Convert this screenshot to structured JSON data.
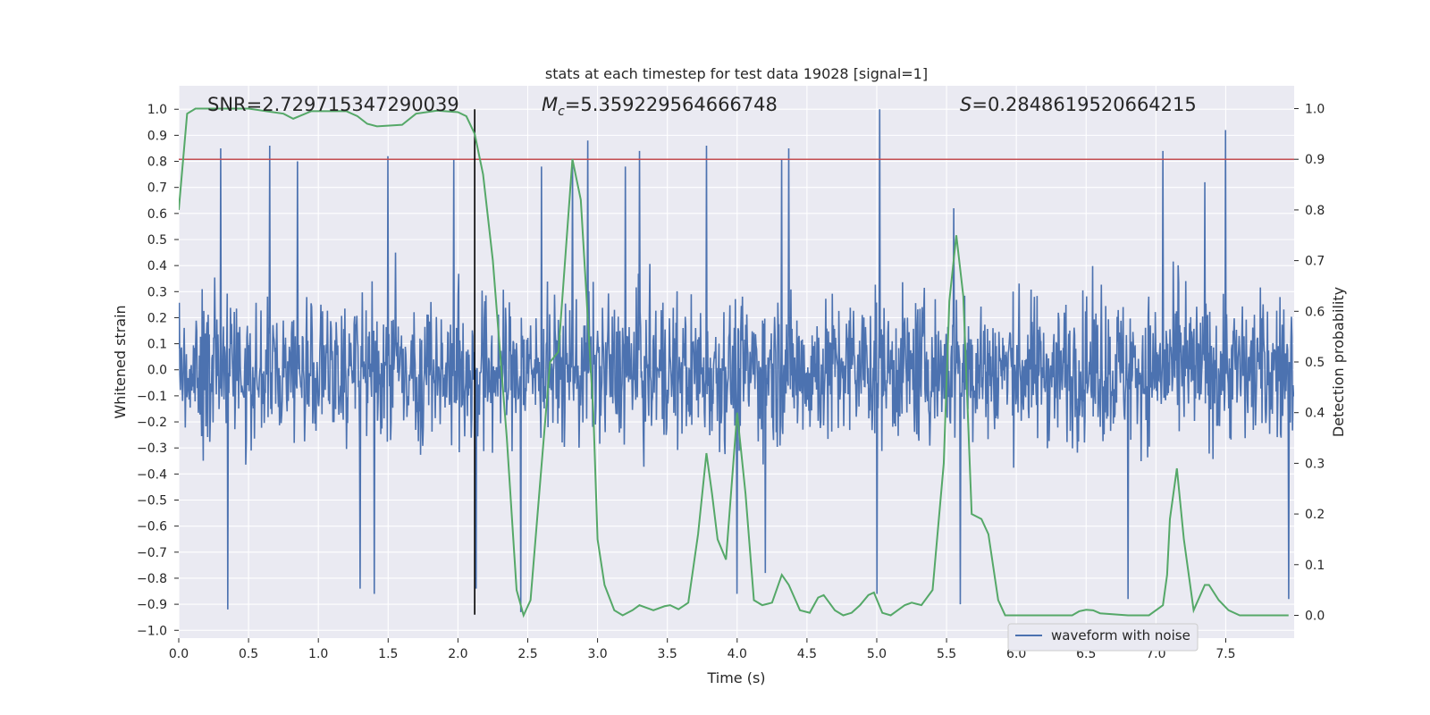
{
  "chart_data": {
    "type": "line",
    "title": "stats at each timestep for test data 19028 [signal=1]",
    "xlabel": "Time (s)",
    "ylabel": "Whitened strain",
    "ylabel_right": "Detection probability",
    "xlim": [
      0.0,
      7.99
    ],
    "ylim": [
      -1.03,
      1.09
    ],
    "ylim_right": [
      -0.045,
      1.045
    ],
    "xticks": [
      0.0,
      0.5,
      1.0,
      1.5,
      2.0,
      2.5,
      3.0,
      3.5,
      4.0,
      4.5,
      5.0,
      5.5,
      6.0,
      6.5,
      7.0,
      7.5
    ],
    "xtick_labels": [
      "0.0",
      "0.5",
      "1.0",
      "1.5",
      "2.0",
      "2.5",
      "3.0",
      "3.5",
      "4.0",
      "4.5",
      "5.0",
      "5.5",
      "6.0",
      "6.5",
      "7.0",
      "7.5"
    ],
    "yticks": [
      1.0,
      0.9,
      0.8,
      0.7,
      0.6,
      0.5,
      0.4,
      0.3,
      0.2,
      0.1,
      0.0,
      -0.1,
      -0.2,
      -0.3,
      -0.4,
      -0.5,
      -0.6,
      -0.7,
      -0.8,
      -0.9,
      -1.0
    ],
    "ytick_labels": [
      "1.0",
      "0.9",
      "0.8",
      "0.7",
      "0.6",
      "0.5",
      "0.4",
      "0.3",
      "0.2",
      "0.1",
      "0.0",
      "−0.1",
      "−0.2",
      "−0.3",
      "−0.4",
      "−0.5",
      "−0.6",
      "−0.7",
      "−0.8",
      "−0.9",
      "−1.0"
    ],
    "yticks_right": [
      1.0,
      0.9,
      0.8,
      0.7,
      0.6,
      0.5,
      0.4,
      0.3,
      0.2,
      0.1,
      0.0
    ],
    "ytick_labels_right": [
      "1.0",
      "0.9",
      "0.8",
      "0.7",
      "0.6",
      "0.5",
      "0.4",
      "0.3",
      "0.2",
      "0.1",
      "0.0"
    ],
    "grid": true,
    "legend": {
      "location": "lower-right",
      "entries": [
        "waveform with noise"
      ]
    },
    "annotations": {
      "snr": "SNR=2.729715347290039",
      "mc_symbol": "M",
      "mc_sub": "c",
      "mc_value": "=5.359229564666748",
      "s_symbol": "S",
      "s_value": "=0.2848619520664215"
    },
    "threshold_right": 0.9,
    "vline_x": 2.12,
    "vline_yrange": [
      -0.94,
      1.0
    ],
    "series": [
      {
        "name": "waveform with noise",
        "axis": "left",
        "style": "noise",
        "color": "#4c72b0",
        "n_samples": 2048,
        "amplitude": 0.45,
        "peaks": [
          [
            0.35,
            -0.92
          ],
          [
            0.3,
            0.85
          ],
          [
            0.65,
            0.86
          ],
          [
            1.5,
            0.82
          ],
          [
            1.4,
            -0.86
          ],
          [
            1.97,
            0.81
          ],
          [
            2.13,
            -0.84
          ],
          [
            2.45,
            -0.93
          ],
          [
            2.6,
            0.78
          ],
          [
            2.82,
            0.78
          ],
          [
            2.93,
            0.88
          ],
          [
            3.2,
            -0.88
          ],
          [
            3.2,
            0.78
          ],
          [
            3.3,
            0.84
          ],
          [
            3.78,
            0.86
          ],
          [
            4.0,
            -0.86
          ],
          [
            4.32,
            0.81
          ],
          [
            4.37,
            0.85
          ],
          [
            5.02,
            1.0
          ],
          [
            5.0,
            -0.86
          ],
          [
            5.55,
            0.62
          ],
          [
            5.6,
            -0.9
          ],
          [
            7.05,
            0.84
          ],
          [
            7.5,
            0.92
          ],
          [
            7.35,
            0.72
          ],
          [
            7.95,
            -0.88
          ],
          [
            6.8,
            -0.88
          ],
          [
            1.3,
            -0.84
          ],
          [
            0.85,
            0.8
          ],
          [
            4.2,
            -0.78
          ]
        ]
      },
      {
        "name": "",
        "axis": "right",
        "style": "line",
        "color": "#55a868",
        "x": [
          0.0,
          0.06,
          0.12,
          0.5,
          0.75,
          0.82,
          0.95,
          1.2,
          1.28,
          1.35,
          1.42,
          1.6,
          1.7,
          1.85,
          2.0,
          2.06,
          2.12,
          2.18,
          2.25,
          2.35,
          2.42,
          2.47,
          2.52,
          2.6,
          2.66,
          2.72,
          2.82,
          2.88,
          2.97,
          3.0,
          3.05,
          3.12,
          3.18,
          3.25,
          3.3,
          3.4,
          3.48,
          3.52,
          3.58,
          3.65,
          3.72,
          3.78,
          3.82,
          3.86,
          3.92,
          4.0,
          4.06,
          4.12,
          4.18,
          4.25,
          4.32,
          4.37,
          4.45,
          4.52,
          4.58,
          4.62,
          4.7,
          4.76,
          4.82,
          4.88,
          4.94,
          4.98,
          5.04,
          5.1,
          5.15,
          5.2,
          5.25,
          5.32,
          5.4,
          5.48,
          5.52,
          5.57,
          5.62,
          5.68,
          5.75,
          5.8,
          5.87,
          5.92,
          6.0,
          6.2,
          6.4,
          6.45,
          6.5,
          6.55,
          6.6,
          6.8,
          6.95,
          7.05,
          7.08,
          7.1,
          7.15,
          7.2,
          7.27,
          7.35,
          7.38,
          7.45,
          7.52,
          7.6,
          7.7,
          7.8,
          7.9,
          7.95
        ],
        "y": [
          0.8,
          0.99,
          1.0,
          1.0,
          0.99,
          0.98,
          0.995,
          0.995,
          0.985,
          0.97,
          0.965,
          0.968,
          0.99,
          0.996,
          0.993,
          0.985,
          0.95,
          0.87,
          0.7,
          0.35,
          0.05,
          0.0,
          0.03,
          0.3,
          0.5,
          0.52,
          0.9,
          0.82,
          0.4,
          0.15,
          0.06,
          0.01,
          0.0,
          0.01,
          0.02,
          0.01,
          0.018,
          0.02,
          0.012,
          0.025,
          0.16,
          0.32,
          0.24,
          0.15,
          0.11,
          0.4,
          0.24,
          0.03,
          0.02,
          0.025,
          0.08,
          0.06,
          0.01,
          0.005,
          0.035,
          0.04,
          0.01,
          0.0,
          0.005,
          0.02,
          0.04,
          0.045,
          0.005,
          0.0,
          0.01,
          0.02,
          0.025,
          0.02,
          0.05,
          0.3,
          0.62,
          0.75,
          0.63,
          0.2,
          0.19,
          0.16,
          0.03,
          0.0,
          0.0,
          0.0,
          0.0,
          0.008,
          0.011,
          0.01,
          0.004,
          0.0,
          0.0,
          0.02,
          0.08,
          0.19,
          0.29,
          0.15,
          0.01,
          0.06,
          0.06,
          0.03,
          0.01,
          0.0,
          0.0,
          0.0,
          0.0,
          0.0
        ]
      }
    ]
  }
}
